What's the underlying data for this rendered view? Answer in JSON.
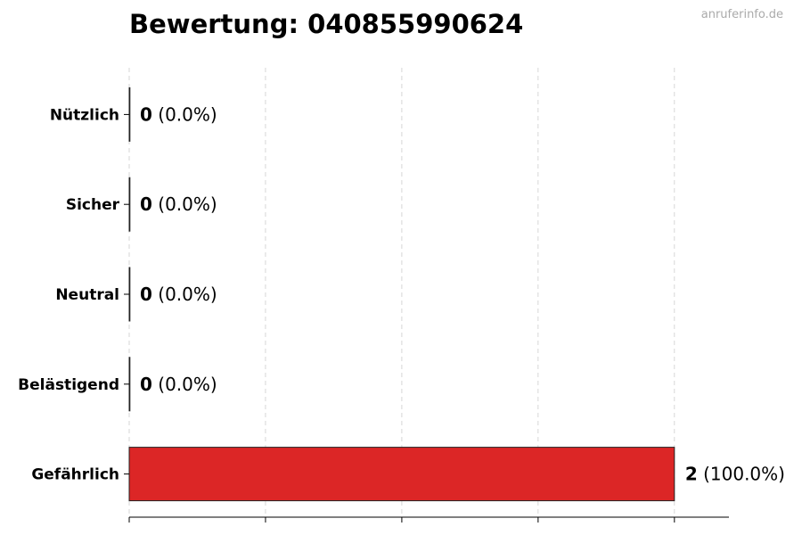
{
  "chart_data": {
    "type": "bar",
    "orientation": "horizontal",
    "title": "Bewertung: 040855990624",
    "watermark": "anruferinfo.de",
    "categories": [
      "Nützlich",
      "Sicher",
      "Neutral",
      "Belästigend",
      "Gefährlich"
    ],
    "values": [
      0,
      0,
      0,
      0,
      2
    ],
    "value_labels": [
      "(0.0%)",
      "(0.0%)",
      "(0.0%)",
      "(0.0%)",
      "(100.0%)"
    ],
    "xlim": [
      0,
      2.2
    ],
    "xticks": [
      0,
      0.5,
      1,
      1.5,
      2
    ],
    "grid": "vertical dashed",
    "bar_color": "#dc2626",
    "xlabel": "",
    "ylabel": ""
  }
}
